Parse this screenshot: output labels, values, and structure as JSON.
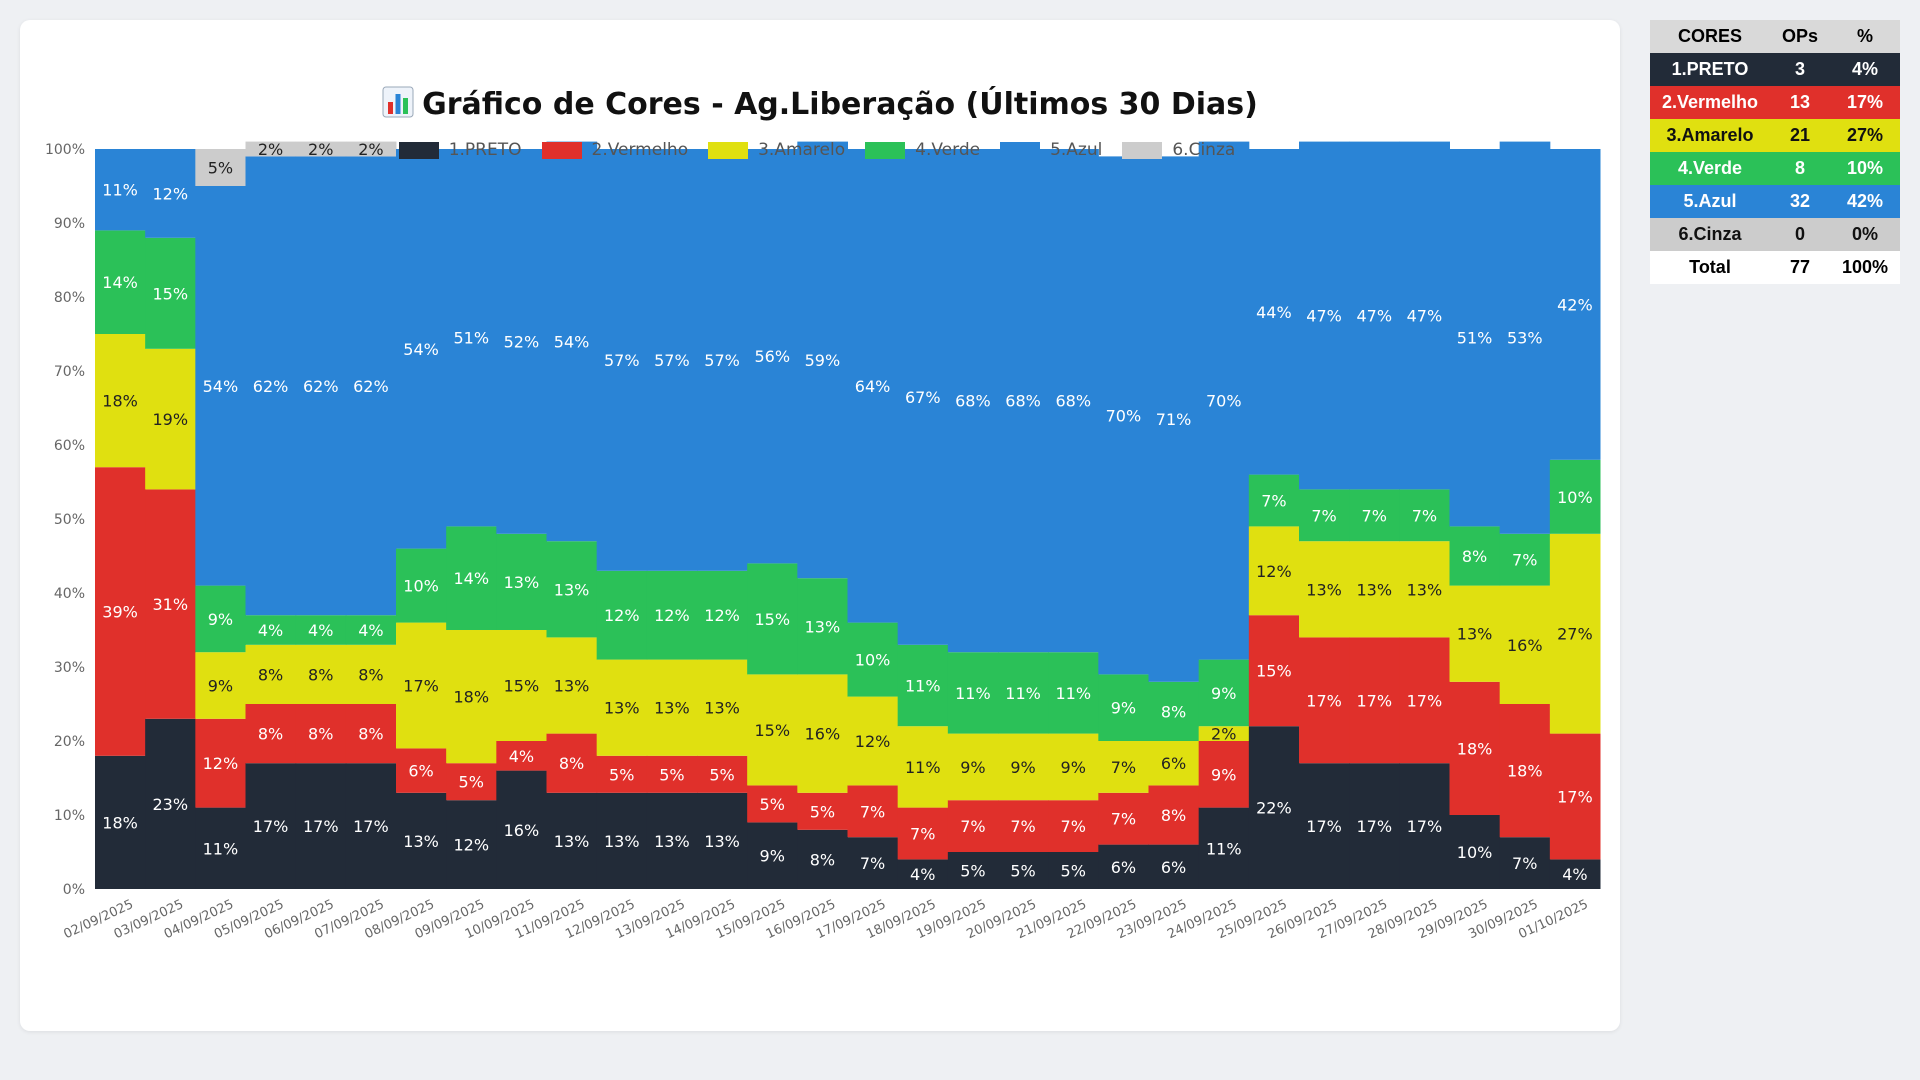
{
  "chart_data": {
    "type": "bar",
    "stacked": true,
    "normalized": true,
    "title": "Gráfico de Cores - Ag.Liberação (Últimos 30 Dias)",
    "title_icon": "bar-chart-icon",
    "legend_position": "top",
    "ylim": [
      0,
      100
    ],
    "y_ticks": [
      "0%",
      "10%",
      "20%",
      "30%",
      "40%",
      "50%",
      "60%",
      "70%",
      "80%",
      "90%",
      "100%"
    ],
    "categories": [
      "02/09/2025",
      "03/09/2025",
      "04/09/2025",
      "05/09/2025",
      "06/09/2025",
      "07/09/2025",
      "08/09/2025",
      "09/09/2025",
      "10/09/2025",
      "11/09/2025",
      "12/09/2025",
      "13/09/2025",
      "14/09/2025",
      "15/09/2025",
      "16/09/2025",
      "17/09/2025",
      "18/09/2025",
      "19/09/2025",
      "20/09/2025",
      "21/09/2025",
      "22/09/2025",
      "23/09/2025",
      "24/09/2025",
      "25/09/2025",
      "26/09/2025",
      "27/09/2025",
      "28/09/2025",
      "29/09/2025",
      "30/09/2025",
      "01/10/2025"
    ],
    "series": [
      {
        "name": "1.PRETO",
        "color": "#222b38",
        "label_color": "#ffffff",
        "values": [
          18,
          23,
          11,
          17,
          17,
          17,
          13,
          12,
          16,
          13,
          13,
          13,
          13,
          9,
          8,
          7,
          4,
          5,
          5,
          5,
          6,
          6,
          11,
          22,
          17,
          17,
          17,
          10,
          7,
          4
        ]
      },
      {
        "name": "2.Vermelho",
        "color": "#e0302b",
        "label_color": "#ffffff",
        "values": [
          39,
          31,
          12,
          8,
          8,
          8,
          6,
          5,
          4,
          8,
          5,
          5,
          5,
          5,
          5,
          7,
          7,
          7,
          7,
          7,
          7,
          8,
          9,
          15,
          17,
          17,
          17,
          18,
          18,
          17
        ]
      },
      {
        "name": "3.Amarelo",
        "color": "#e0e010",
        "label_color": "#222222",
        "values": [
          18,
          19,
          9,
          8,
          8,
          8,
          17,
          18,
          15,
          13,
          13,
          13,
          13,
          15,
          16,
          12,
          11,
          9,
          9,
          9,
          7,
          6,
          2,
          12,
          13,
          13,
          13,
          13,
          16,
          27
        ]
      },
      {
        "name": "4.Verde",
        "color": "#2bc158",
        "label_color": "#ffffff",
        "values": [
          14,
          15,
          9,
          4,
          4,
          4,
          10,
          14,
          13,
          13,
          12,
          12,
          12,
          15,
          13,
          10,
          11,
          11,
          11,
          11,
          9,
          8,
          9,
          7,
          7,
          7,
          7,
          8,
          7,
          10
        ]
      },
      {
        "name": "5.Azul",
        "color": "#2a84d6",
        "label_color": "#ffffff",
        "values": [
          11,
          12,
          54,
          62,
          62,
          62,
          54,
          51,
          52,
          54,
          57,
          57,
          57,
          56,
          59,
          64,
          67,
          68,
          68,
          68,
          70,
          71,
          70,
          44,
          47,
          47,
          47,
          51,
          53,
          42
        ]
      },
      {
        "name": "6.Cinza",
        "color": "#cccccc",
        "label_color": "#222222",
        "values": [
          0,
          0,
          5,
          2,
          2,
          2,
          0,
          0,
          0,
          0,
          0,
          0,
          0,
          0,
          0,
          0,
          0,
          0,
          0,
          0,
          0,
          0,
          0,
          0,
          0,
          0,
          0,
          0,
          0,
          0
        ]
      }
    ]
  },
  "summary_table": {
    "headers": [
      "CORES",
      "OPs",
      "%"
    ],
    "rows": [
      {
        "name": "1.PRETO",
        "ops": "3",
        "pct": "4%",
        "bg": "#222b38",
        "fg": "#ffffff"
      },
      {
        "name": "2.Vermelho",
        "ops": "13",
        "pct": "17%",
        "bg": "#e0302b",
        "fg": "#ffffff"
      },
      {
        "name": "3.Amarelo",
        "ops": "21",
        "pct": "27%",
        "bg": "#e0e010",
        "fg": "#111111"
      },
      {
        "name": "4.Verde",
        "ops": "8",
        "pct": "10%",
        "bg": "#2bc158",
        "fg": "#ffffff"
      },
      {
        "name": "5.Azul",
        "ops": "32",
        "pct": "42%",
        "bg": "#2a84d6",
        "fg": "#ffffff"
      },
      {
        "name": "6.Cinza",
        "ops": "0",
        "pct": "0%",
        "bg": "#cccccc",
        "fg": "#111111"
      }
    ],
    "total": {
      "name": "Total",
      "ops": "77",
      "pct": "100%"
    }
  }
}
